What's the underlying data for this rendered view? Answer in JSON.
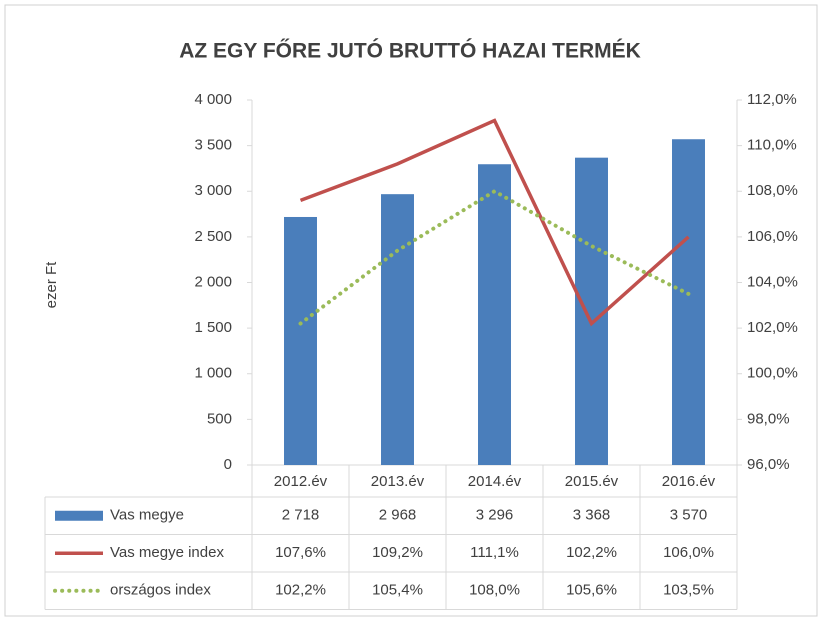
{
  "chart_data": {
    "type": "bar-line",
    "title": "AZ EGY FŐRE JUTÓ BRUTTÓ HAZAI TERMÉK",
    "ylabel": "ezer Ft",
    "categories": [
      "2012.év",
      "2013.év",
      "2014.év",
      "2015.év",
      "2016.év"
    ],
    "series": [
      {
        "name": "Vas megye",
        "type": "bar",
        "color": "#4a7ebb",
        "values": [
          2718,
          2968,
          3296,
          3368,
          3570
        ],
        "value_labels": [
          "2 718",
          "2 968",
          "3 296",
          "3 368",
          "3 570"
        ]
      },
      {
        "name": "Vas megye index",
        "type": "line",
        "axis": "y2",
        "color": "#c0504d",
        "values": [
          107.6,
          109.2,
          111.1,
          102.2,
          106.0
        ],
        "value_labels": [
          "107,6%",
          "109,2%",
          "111,1%",
          "102,2%",
          "106,0%"
        ]
      },
      {
        "name": "országos index",
        "type": "line",
        "dash": "dotted",
        "axis": "y2",
        "color": "#9bbb59",
        "values": [
          102.2,
          105.4,
          108.0,
          105.6,
          103.5
        ],
        "value_labels": [
          "102,2%",
          "105,4%",
          "108,0%",
          "105,6%",
          "103,5%"
        ]
      }
    ],
    "ylim": [
      0,
      4000
    ],
    "yticks": [
      0,
      500,
      {
        "value": 1000,
        "label": "1 000"
      },
      {
        "value": 1500,
        "label": "1 500"
      },
      {
        "value": 2000,
        "label": "2 000"
      },
      {
        "value": 2500,
        "label": "2 500"
      },
      {
        "value": 3000,
        "label": "3 000"
      },
      {
        "value": 3500,
        "label": "3 500"
      },
      {
        "value": 4000,
        "label": "4 000"
      }
    ],
    "y2lim": [
      96,
      112
    ],
    "y2ticks": [
      {
        "value": 96,
        "label": "96,0%"
      },
      {
        "value": 98,
        "label": "98,0%"
      },
      {
        "value": 100,
        "label": "100,0%"
      },
      {
        "value": 102,
        "label": "102,0%"
      },
      {
        "value": 104,
        "label": "104,0%"
      },
      {
        "value": 106,
        "label": "106,0%"
      },
      {
        "value": 108,
        "label": "108,0%"
      },
      {
        "value": 110,
        "label": "110,0%"
      },
      {
        "value": 112,
        "label": "112,0%"
      }
    ],
    "data_table": true
  }
}
